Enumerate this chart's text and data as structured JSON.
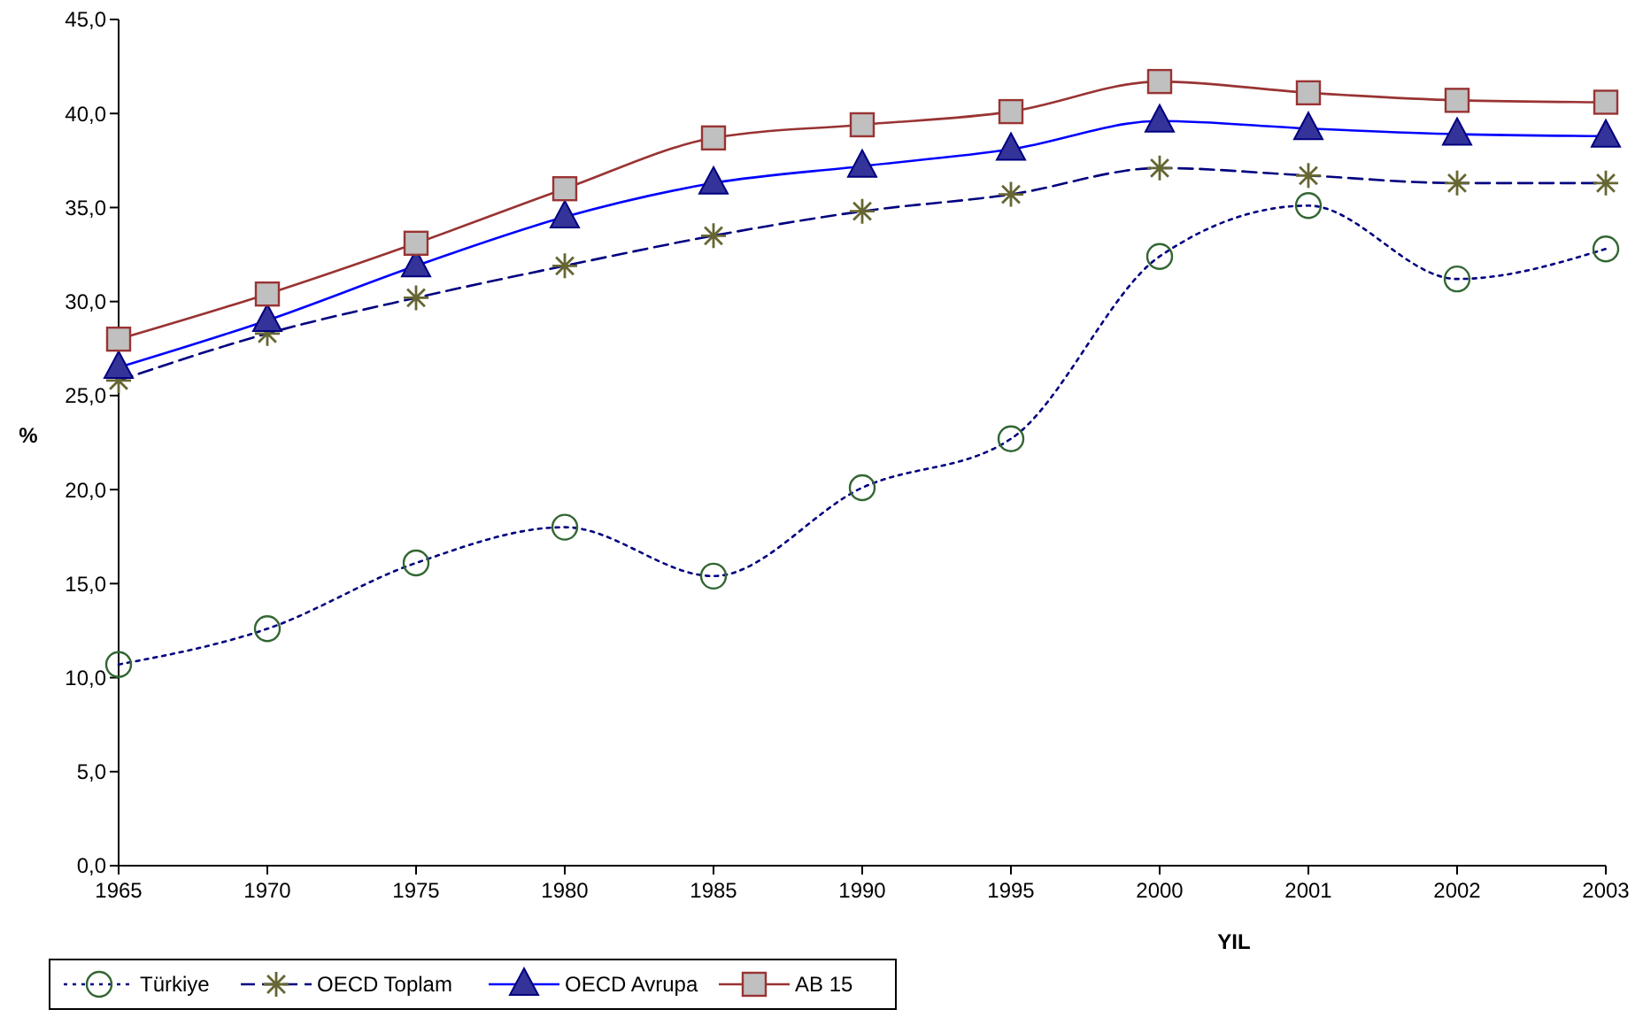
{
  "chart_data": {
    "type": "line",
    "xlabel": "YIL",
    "ylabel": "%",
    "categories": [
      "1965",
      "1970",
      "1975",
      "1980",
      "1985",
      "1990",
      "1995",
      "2000",
      "2001",
      "2002",
      "2003"
    ],
    "ylim": [
      0,
      45
    ],
    "yticks": [
      {
        "value": 0,
        "label": "0,0"
      },
      {
        "value": 5,
        "label": "5,0"
      },
      {
        "value": 10,
        "label": "10,0"
      },
      {
        "value": 15,
        "label": "15,0"
      },
      {
        "value": 20,
        "label": "20,0"
      },
      {
        "value": 25,
        "label": "25,0"
      },
      {
        "value": 30,
        "label": "30,0"
      },
      {
        "value": 35,
        "label": "35,0"
      },
      {
        "value": 40,
        "label": "40,0"
      },
      {
        "value": 45,
        "label": "45,0"
      }
    ],
    "grid": false,
    "legend": "bottom left",
    "series": [
      {
        "name": "Türkiye",
        "color": "#000080",
        "marker": "circle",
        "line_style": "dotted",
        "values": [
          10.7,
          12.6,
          16.1,
          18.0,
          15.4,
          20.1,
          22.7,
          32.4,
          35.1,
          31.2,
          32.8
        ]
      },
      {
        "name": "OECD Toplam",
        "color": "#000080",
        "marker": "cross",
        "line_style": "dashed",
        "values": [
          25.8,
          28.3,
          30.2,
          31.9,
          33.5,
          34.8,
          35.7,
          37.1,
          36.7,
          36.3,
          36.3
        ]
      },
      {
        "name": "OECD Avrupa",
        "color": "#0000ff",
        "marker": "triangle",
        "line_style": "solid",
        "values": [
          26.5,
          29.0,
          31.9,
          34.5,
          36.3,
          37.2,
          38.1,
          39.6,
          39.2,
          38.9,
          38.8
        ]
      },
      {
        "name": "AB 15",
        "color": "#993333",
        "marker": "square",
        "line_style": "solid",
        "values": [
          28.0,
          30.4,
          33.1,
          36.0,
          38.7,
          39.4,
          40.1,
          41.7,
          41.1,
          40.7,
          40.6
        ]
      }
    ]
  }
}
